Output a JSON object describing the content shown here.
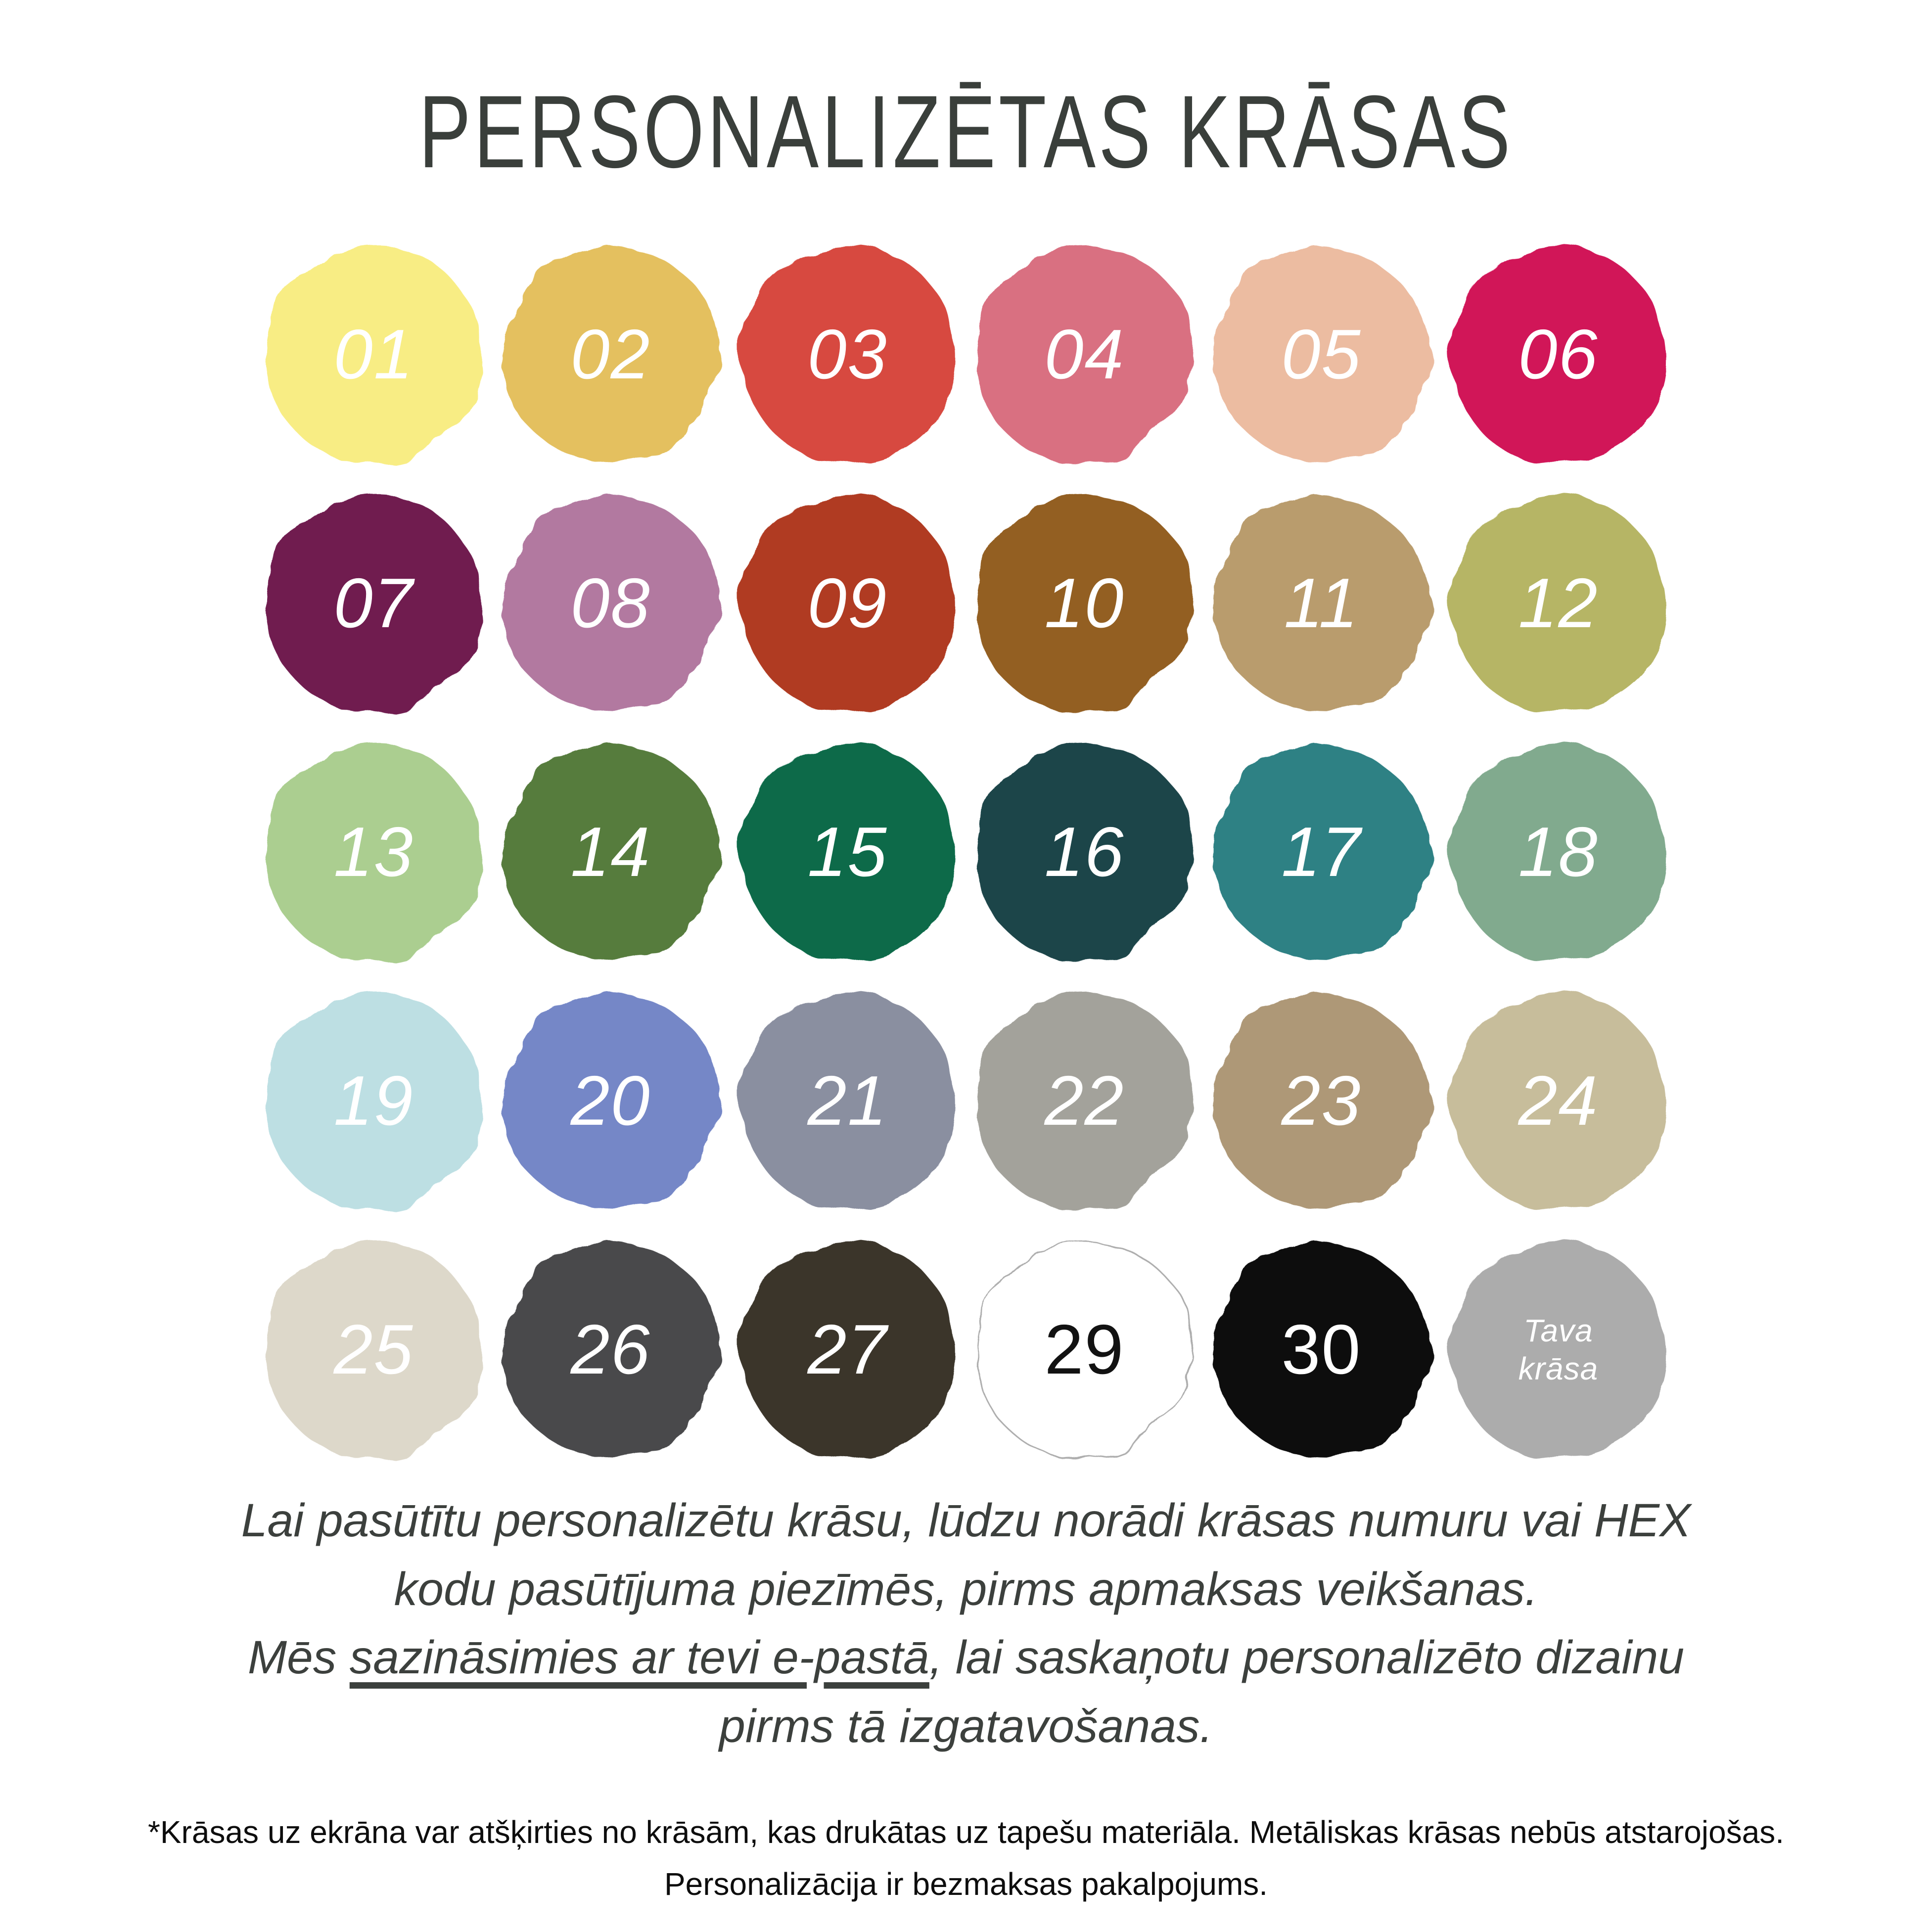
{
  "title": "PERSONALIZĒTAS KRĀSAS",
  "palette": {
    "swatches": [
      {
        "label": "01",
        "color": "#F8ED84"
      },
      {
        "label": "02",
        "color": "#E4C05F"
      },
      {
        "label": "03",
        "color": "#D7493F"
      },
      {
        "label": "04",
        "color": "#D96F81"
      },
      {
        "label": "05",
        "color": "#ECBCA1"
      },
      {
        "label": "06",
        "color": "#D11459"
      },
      {
        "label": "07",
        "color": "#6F1B50"
      },
      {
        "label": "08",
        "color": "#B279A0"
      },
      {
        "label": "09",
        "color": "#B03A21"
      },
      {
        "label": "10",
        "color": "#935F21"
      },
      {
        "label": "11",
        "color": "#B99C6D"
      },
      {
        "label": "12",
        "color": "#B6B565"
      },
      {
        "label": "13",
        "color": "#ABCE90"
      },
      {
        "label": "14",
        "color": "#567B3C"
      },
      {
        "label": "15",
        "color": "#0A6B4A"
      },
      {
        "label": "16",
        "color": "#1C4448"
      },
      {
        "label": "17",
        "color": "#2D8184"
      },
      {
        "label": "18",
        "color": "#81AA8E"
      },
      {
        "label": "19",
        "color": "#BDDFE3"
      },
      {
        "label": "20",
        "color": "#7487C7"
      },
      {
        "label": "21",
        "color": "#8A8FA0"
      },
      {
        "label": "22",
        "color": "#A3A29B"
      },
      {
        "label": "23",
        "color": "#AE9877"
      },
      {
        "label": "24",
        "color": "#C7BD9B"
      },
      {
        "label": "25",
        "color": "#DDD8CA"
      },
      {
        "label": "26",
        "color": "#48494B"
      },
      {
        "label": "27",
        "color": "#3B362B"
      },
      {
        "label": "29",
        "color": "#FFFFFF",
        "text_color": "#121212",
        "italic": false,
        "outline": "#ADADAD"
      },
      {
        "label": "30",
        "color": "#0A0A0A",
        "italic": false
      },
      {
        "label": "Tava\nkrāsa",
        "color": "#ACACAC",
        "small": true
      }
    ]
  },
  "note": {
    "line1": "Lai pasūtītu personalizētu krāsu, lūdzu norādi krāsas numuru vai HEX",
    "line2": "kodu pasūtījuma piezīmēs, pirms apmaksas veikšanas.",
    "line3_prefix": "Mēs ",
    "line3_underlined": "sazināsimies ar tevi e-pastā",
    "line3_suffix": ", lai saskaņotu personalizēto dizainu",
    "line4": "pirms tā izgatavošanas."
  },
  "footnote": {
    "line1": "*Krāsas uz ekrāna var atšķirties no krāsām, kas drukātas uz tapešu materiāla. Metāliskas krāsas nebūs atstarojošas.",
    "line2": "Personalizācija ir bezmaksas pakalpojums."
  },
  "colors": {
    "background": "#FFFFFF",
    "title_text": "#3A3F3B",
    "note_text": "#3C403D",
    "footnote_text": "#0D0D0D",
    "default_swatch_label": "#FFFFFF"
  }
}
